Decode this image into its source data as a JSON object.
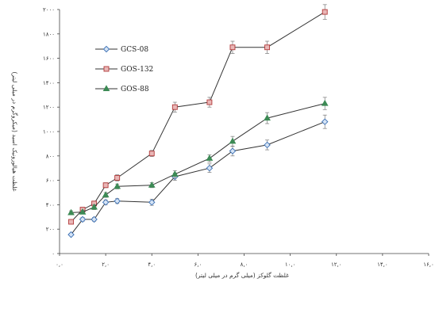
{
  "chart_data": {
    "type": "line",
    "xlabel": "غلظت گلوکز (میلی گرم در میلی لیتر)",
    "ylabel": "غلظت هیالورونیک اسید (میکروگرم در میلی لیتر)",
    "xlim": [
      0,
      16
    ],
    "ylim": [
      0,
      2000
    ],
    "x_ticks": [
      0,
      2,
      4,
      6,
      8,
      10,
      12,
      14,
      16
    ],
    "y_ticks": [
      0,
      200,
      400,
      600,
      800,
      1000,
      1200,
      1400,
      1600,
      1800,
      2000
    ],
    "x_tick_labels": [
      "۰,۰",
      "۲,۰",
      "۴,۰",
      "۶,۰",
      "۸,۰",
      "۱۰,۰",
      "۱۲,۰",
      "۱۴,۰",
      "۱۶,۰"
    ],
    "y_tick_labels": [
      "۰",
      "۲۰۰",
      "۴۰۰",
      "۶۰۰",
      "۸۰۰",
      "۱۰۰۰",
      "۱۲۰۰",
      "۱۴۰۰",
      "۱۶۰۰",
      "۱۸۰۰",
      "۲۰۰۰"
    ],
    "legend_position": "top-left",
    "grid": false,
    "series": [
      {
        "name": "GCS-08",
        "color": "#3a6fb4",
        "marker": "diamond",
        "x": [
          0.5,
          1.0,
          1.5,
          2.0,
          2.5,
          4.0,
          5.0,
          6.5,
          7.5,
          9.0,
          11.5
        ],
        "y": [
          155,
          280,
          280,
          420,
          430,
          420,
          630,
          700,
          840,
          890,
          1080
        ],
        "err": [
          10,
          15,
          15,
          20,
          20,
          25,
          30,
          35,
          40,
          40,
          55
        ]
      },
      {
        "name": "GOS-132",
        "color": "#b23a3a",
        "marker": "square",
        "x": [
          0.5,
          1.0,
          1.5,
          2.0,
          2.5,
          4.0,
          5.0,
          6.5,
          7.5,
          9.0,
          11.5
        ],
        "y": [
          260,
          360,
          410,
          560,
          620,
          820,
          1200,
          1240,
          1690,
          1690,
          1980
        ],
        "err": [
          15,
          15,
          20,
          20,
          25,
          25,
          40,
          40,
          50,
          50,
          60
        ]
      },
      {
        "name": "GOS-88",
        "color": "#3c8a55",
        "marker": "triangle",
        "x": [
          0.5,
          1.0,
          1.5,
          2.0,
          2.5,
          4.0,
          5.0,
          6.5,
          7.5,
          9.0,
          11.5
        ],
        "y": [
          335,
          340,
          380,
          480,
          550,
          560,
          650,
          780,
          920,
          1110,
          1230
        ],
        "err": [
          15,
          15,
          20,
          20,
          20,
          20,
          30,
          30,
          40,
          45,
          50
        ]
      }
    ]
  }
}
